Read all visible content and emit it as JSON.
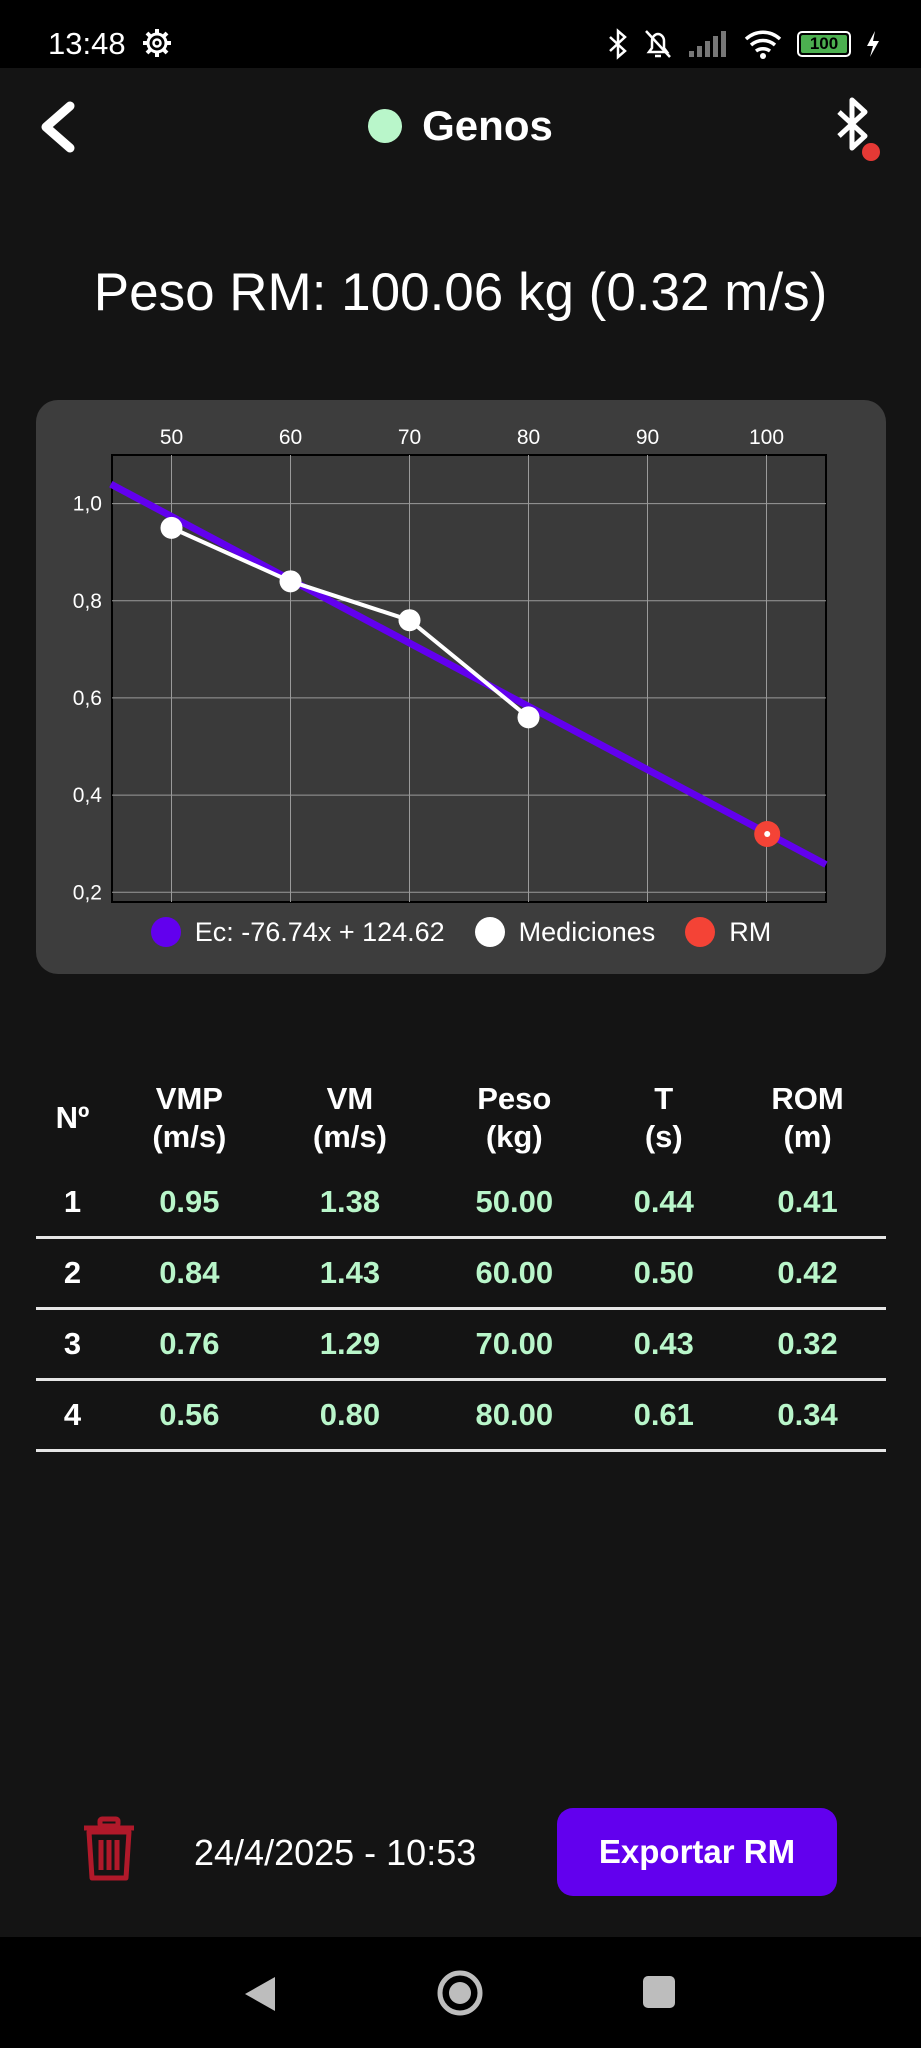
{
  "status_bar": {
    "time": "13:48",
    "battery": "100",
    "icons": [
      "gear-icon",
      "bluetooth-icon",
      "bell-off-icon",
      "signal-icon",
      "wifi-icon",
      "battery-icon",
      "charging-icon"
    ]
  },
  "header": {
    "title": "Genos",
    "status_color": "#b9f6ca",
    "bluetooth_badge_color": "#e53935"
  },
  "rm_title": "Peso RM: 100.06 kg (0.32 m/s)",
  "chart_data": {
    "type": "line",
    "x_ticks": [
      "50",
      "60",
      "70",
      "80",
      "90",
      "100"
    ],
    "y_ticks": [
      "0,2",
      "0,4",
      "0,6",
      "0,8",
      "1,0"
    ],
    "xlim": [
      45,
      105
    ],
    "ylim": [
      0.18,
      1.1
    ],
    "grid": true,
    "x_axis_position": "top",
    "legend_position": "bottom",
    "series": [
      {
        "name": "Ec: -76.74x + 124.62",
        "kind": "regression-line",
        "color": "#6200ee",
        "x": [
          44.9,
          105.0
        ],
        "y": [
          1.04,
          0.257
        ]
      },
      {
        "name": "Mediciones",
        "kind": "measurements",
        "color": "#ffffff",
        "x": [
          50,
          60,
          70,
          80
        ],
        "y": [
          0.95,
          0.84,
          0.76,
          0.56
        ]
      },
      {
        "name": "RM",
        "kind": "rm-point",
        "color": "#f44336",
        "x": [
          100.06
        ],
        "y": [
          0.32
        ]
      }
    ]
  },
  "table": {
    "headers": [
      {
        "line1": "Nº",
        "line2": ""
      },
      {
        "line1": "VMP",
        "line2": "(m/s)"
      },
      {
        "line1": "VM",
        "line2": "(m/s)"
      },
      {
        "line1": "Peso",
        "line2": "(kg)"
      },
      {
        "line1": "T",
        "line2": "(s)"
      },
      {
        "line1": "ROM",
        "line2": "(m)"
      }
    ],
    "rows": [
      [
        "1",
        "0.95",
        "1.38",
        "50.00",
        "0.44",
        "0.41"
      ],
      [
        "2",
        "0.84",
        "1.43",
        "60.00",
        "0.50",
        "0.42"
      ],
      [
        "3",
        "0.76",
        "1.29",
        "70.00",
        "0.43",
        "0.32"
      ],
      [
        "4",
        "0.56",
        "0.80",
        "80.00",
        "0.61",
        "0.34"
      ]
    ],
    "value_color": "#b9f6ca"
  },
  "footer": {
    "date": "24/4/2025 - 10:53",
    "export_label": "Exportar RM",
    "export_color": "#6200ee",
    "trash_color": "#b0192a"
  }
}
